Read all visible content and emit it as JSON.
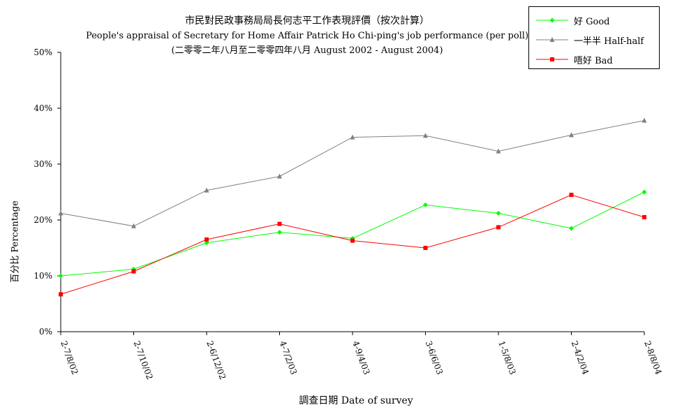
{
  "chart_data": {
    "type": "line",
    "title": "市民對民政事務局局長何志平工作表現評價（按次計算）",
    "subtitle": "People's appraisal of Secretary for Home Affair Patrick Ho Chi-ping's job performance (per poll)",
    "period": "(二零零二年八月至二零零四年八月 August 2002 - August 2004)",
    "xlabel": "調查日期 Date of survey",
    "ylabel": "百分比 Percentage",
    "categories": [
      "2-7/8/02",
      "2-7/10/02",
      "2-6/12/02",
      "4-7/2/03",
      "4-9/4/03",
      "3-6/6/03",
      "1-5/8/03",
      "2-4/2/04",
      "2-8/8/04"
    ],
    "y_ticks": [
      "0%",
      "10%",
      "20%",
      "30%",
      "40%",
      "50%"
    ],
    "ylim": [
      0,
      50
    ],
    "grid": false,
    "legend_position": "top-right",
    "series": [
      {
        "name": "好 Good",
        "color": "#00ff00",
        "marker": "diamond",
        "values": [
          10.0,
          11.2,
          15.9,
          17.8,
          16.7,
          22.7,
          21.2,
          18.5,
          25.0
        ]
      },
      {
        "name": "一半半 Half-half",
        "color": "#808080",
        "marker": "triangle",
        "values": [
          21.2,
          18.9,
          25.3,
          27.8,
          34.8,
          35.1,
          32.3,
          35.2,
          37.8
        ]
      },
      {
        "name": "唔好 Bad",
        "color": "#ff0000",
        "marker": "square",
        "values": [
          6.7,
          10.8,
          16.5,
          19.3,
          16.3,
          15.0,
          18.7,
          24.5,
          20.5
        ]
      }
    ]
  }
}
